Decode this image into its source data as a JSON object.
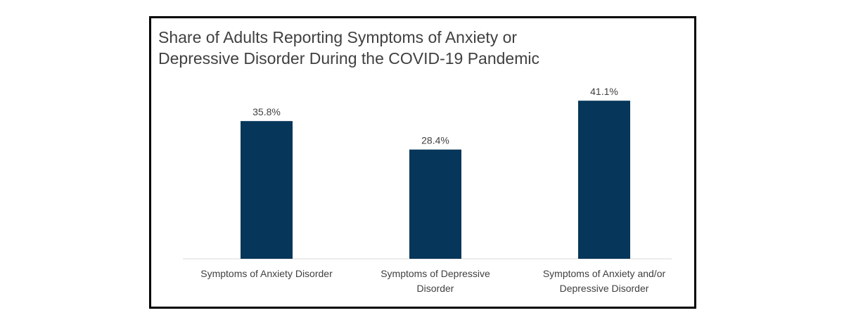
{
  "chart_data": {
    "type": "bar",
    "title_lines": [
      "Share of Adults Reporting Symptoms of Anxiety or",
      "Depressive Disorder During the COVID-19 Pandemic"
    ],
    "categories": [
      [
        "Symptoms of Anxiety Disorder"
      ],
      [
        "Symptoms of Depressive",
        "Disorder"
      ],
      [
        "Symptoms of Anxiety and/or",
        "Depressive Disorder"
      ]
    ],
    "values": [
      35.8,
      28.4,
      41.1
    ],
    "value_labels": [
      "35.8%",
      "28.4%",
      "41.1%"
    ],
    "ylim": [
      0,
      45
    ],
    "grid": false,
    "colors": {
      "bar": "#063659",
      "axis": "#d9d9d9",
      "text": "#404040",
      "border": "#000000"
    }
  }
}
